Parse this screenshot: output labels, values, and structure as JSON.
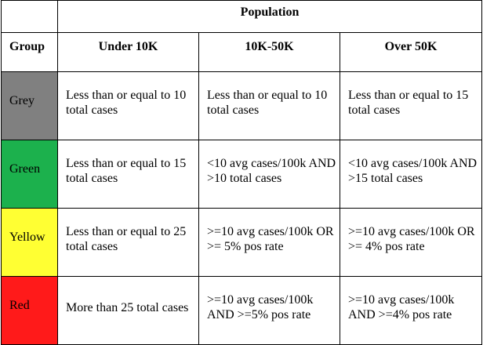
{
  "table": {
    "super_header": "Population",
    "group_header": "Group",
    "columns": [
      "Under 10K",
      "10K-50K",
      "Over 50K"
    ],
    "rows": [
      {
        "group": "Grey",
        "color": "#808080",
        "cells": [
          "Less than or equal to 10 total cases",
          "Less than or equal to 10 total cases",
          "Less than or equal to 15 total cases"
        ]
      },
      {
        "group": "Green",
        "color": "#1cb14d",
        "cells": [
          "Less than or equal to 15 total cases",
          "<10 avg cases/100k AND >10 total cases",
          "<10 avg cases/100k AND >15 total cases"
        ]
      },
      {
        "group": "Yellow",
        "color": "#ffff33",
        "cells": [
          "Less than or equal to 25 total cases",
          ">=10 avg cases/100k OR >= 5% pos rate",
          ">=10 avg cases/100k OR >= 4% pos rate"
        ]
      },
      {
        "group": "Red",
        "color": "#ff1a1a",
        "cells": [
          "More than 25 total cases",
          ">=10 avg cases/100k AND >=5% pos rate",
          ">=10 avg cases/100k AND >=4% pos rate"
        ]
      }
    ]
  }
}
